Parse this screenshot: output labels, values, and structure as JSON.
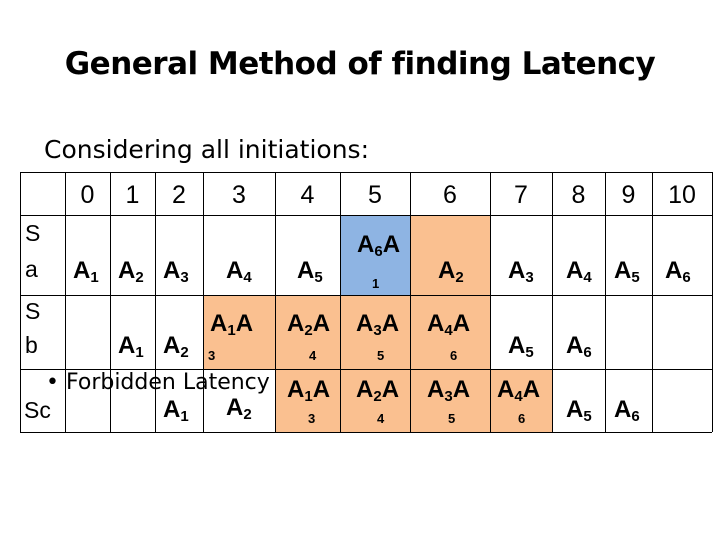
{
  "title": "General Method of finding Latency",
  "subtitle": "Considering all initiations:",
  "columns": [
    "0",
    "1",
    "2",
    "3",
    "4",
    "5",
    "6",
    "7",
    "8",
    "9",
    "10"
  ],
  "row_labels": {
    "sa_top": "S",
    "sa_bottom": "a",
    "sb_top": "S",
    "sb_bottom": "b",
    "sc": "Sc"
  },
  "bullet": "•",
  "forbidden_text": "Forbidden Latency",
  "row_a": [
    {
      "main": "A",
      "sub": "1"
    },
    {
      "main": "A",
      "sub": "2"
    },
    {
      "main": "A",
      "sub": "3"
    },
    {
      "main": "A",
      "sub": "4"
    },
    {
      "main": "A",
      "sub": "5"
    },
    {
      "main": "A",
      "sub": "6",
      "tail": "A",
      "below": "1"
    },
    {
      "main": "A",
      "sub": "2"
    },
    {
      "main": "A",
      "sub": "3"
    },
    {
      "main": "A",
      "sub": "4"
    },
    {
      "main": "A",
      "sub": "5"
    },
    {
      "main": "A",
      "sub": "6"
    }
  ],
  "row_b": [
    {
      "main": "A",
      "sub": "1"
    },
    {
      "main": "A",
      "sub": "2"
    },
    {
      "below": "3"
    },
    {
      "main": "A",
      "sub": "1",
      "tail": "A"
    },
    {
      "main": "A",
      "sub": "2",
      "tail": "A",
      "below": "4"
    },
    {
      "main": "A",
      "sub": "3",
      "tail": "A",
      "below": "5"
    },
    {
      "main": "A",
      "sub": "4",
      "tail": "A",
      "below": "6"
    },
    {
      "main": "A",
      "sub": "5"
    },
    {
      "main": "A",
      "sub": "6"
    }
  ],
  "row_c": [
    {
      "main": "A",
      "sub": "1"
    },
    {
      "main": "A",
      "sub": "2"
    },
    {
      "main": "A",
      "sub": "1",
      "tail": "A",
      "below": "3"
    },
    {
      "main": "A",
      "sub": "2",
      "tail": "A",
      "below": "4"
    },
    {
      "main": "A",
      "sub": "3",
      "tail": "A",
      "below": "5"
    },
    {
      "main": "A",
      "sub": "4",
      "tail": "A",
      "below": "6"
    },
    {
      "main": "A",
      "sub": "5"
    },
    {
      "main": "A",
      "sub": "6"
    }
  ],
  "colors": {
    "blue_cell": "#8eb4e3",
    "orange_cell": "#fac090",
    "line": "#000000"
  }
}
